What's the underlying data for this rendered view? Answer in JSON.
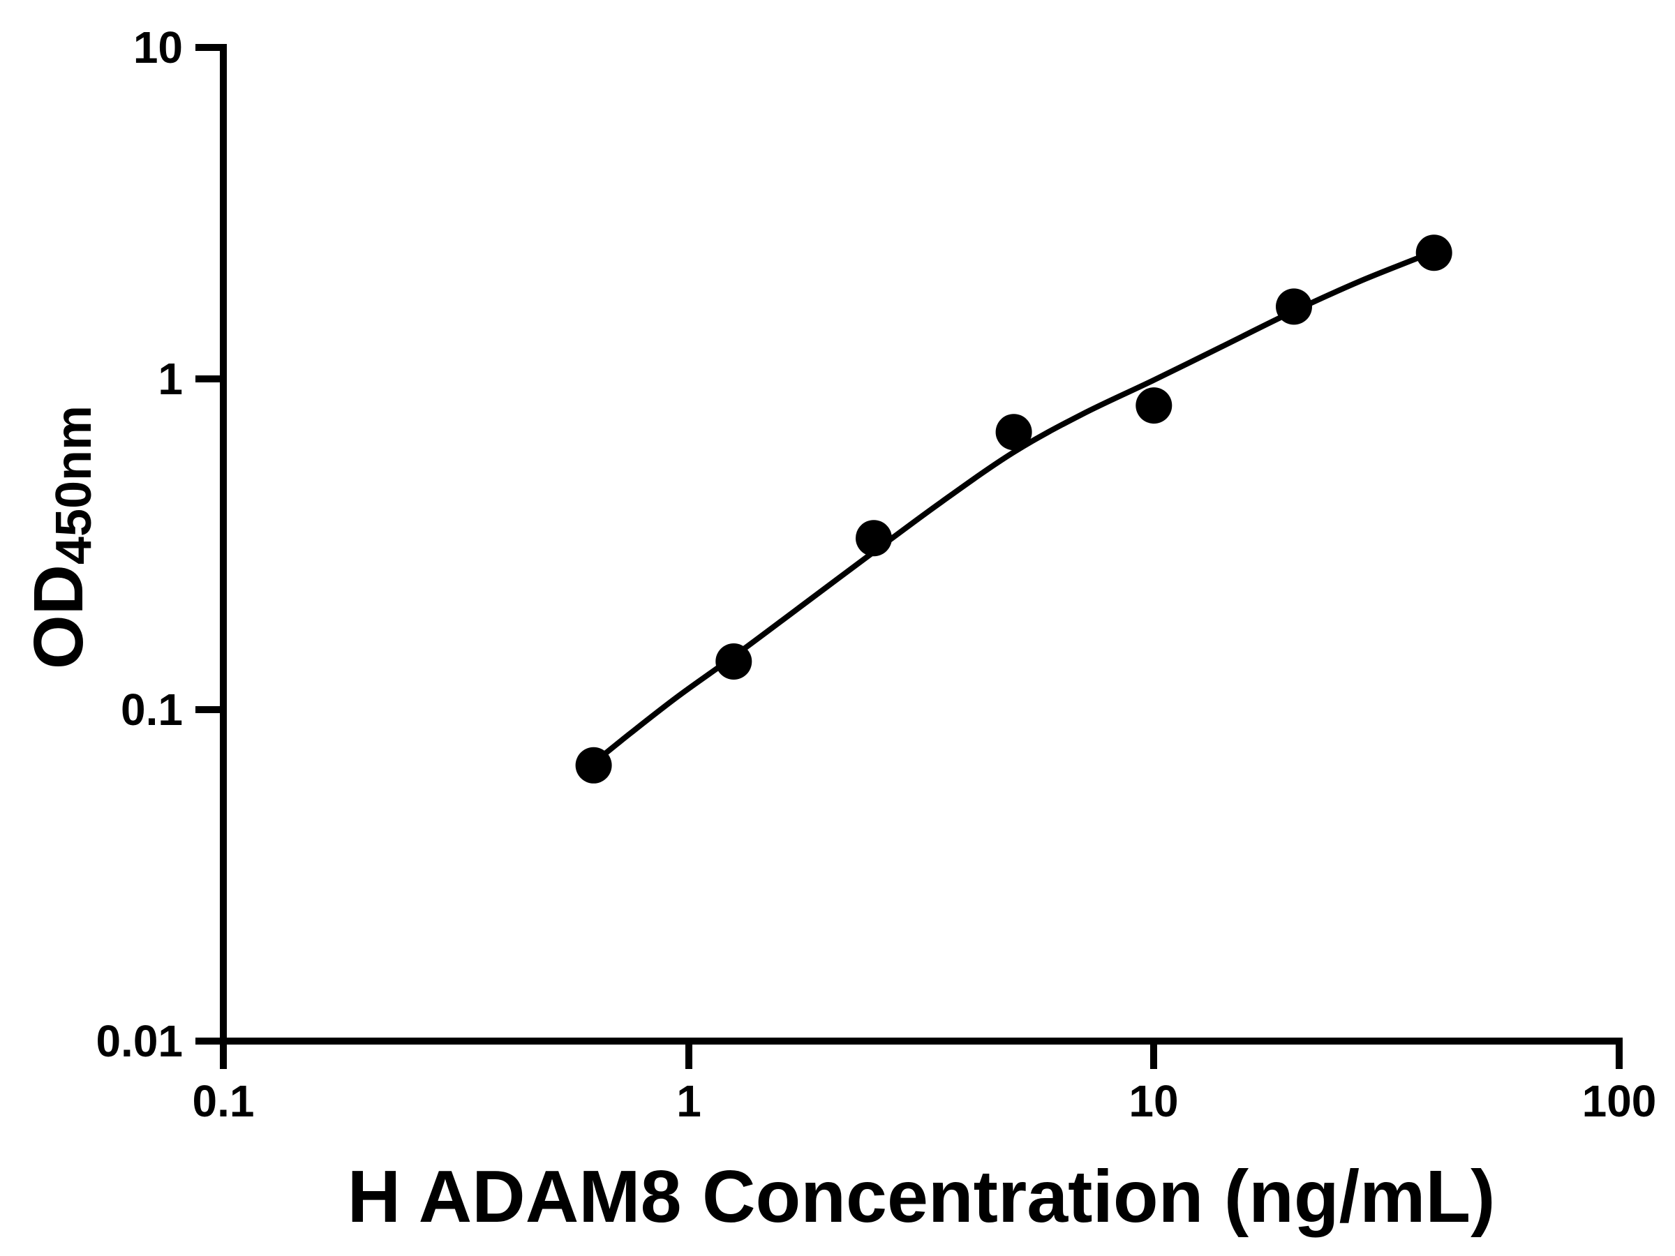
{
  "chart_data": {
    "type": "scatter",
    "title": "",
    "xlabel": "H ADAM8 Concentration (ng/mL)",
    "ylabel_main": "OD",
    "ylabel_sub": "450nm",
    "x_scale": "log",
    "y_scale": "log",
    "xlim": [
      0.1,
      100
    ],
    "ylim": [
      0.01,
      10
    ],
    "grid": false,
    "legend": "none",
    "axis_color": "#000000",
    "point_color": "#000000",
    "line_color": "#000000",
    "x_ticks": [
      {
        "value": 0.1,
        "label": "0.1"
      },
      {
        "value": 1,
        "label": "1"
      },
      {
        "value": 10,
        "label": "10"
      },
      {
        "value": 100,
        "label": "100"
      }
    ],
    "y_ticks": [
      {
        "value": 0.01,
        "label": "0.01"
      },
      {
        "value": 0.1,
        "label": "0.1"
      },
      {
        "value": 1,
        "label": "1"
      },
      {
        "value": 10,
        "label": "10"
      }
    ],
    "points": {
      "x": [
        0.625,
        1.25,
        2.5,
        5,
        10,
        20,
        40
      ],
      "y": [
        0.068,
        0.14,
        0.33,
        0.69,
        0.83,
        1.65,
        2.4
      ]
    },
    "fit_curve": [
      [
        0.6,
        0.066
      ],
      [
        0.75,
        0.085
      ],
      [
        0.95,
        0.11
      ],
      [
        1.25,
        0.145
      ],
      [
        1.7,
        0.2
      ],
      [
        2.5,
        0.3
      ],
      [
        3.5,
        0.425
      ],
      [
        5,
        0.6
      ],
      [
        7,
        0.78
      ],
      [
        10,
        0.99
      ],
      [
        14,
        1.25
      ],
      [
        20,
        1.6
      ],
      [
        28,
        1.98
      ],
      [
        41,
        2.45
      ]
    ]
  }
}
